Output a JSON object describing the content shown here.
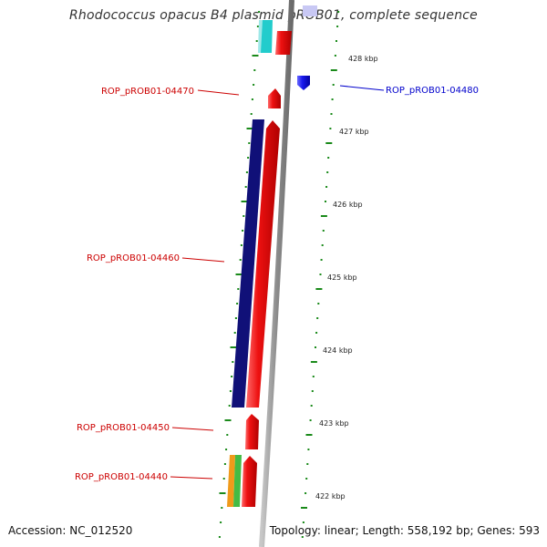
{
  "title": "Rhodococcus opacus B4 plasmid pROB01, complete sequence",
  "footer": {
    "accession": "Accession: NC_012520",
    "topology": "Topology: linear; Length: 558,192 bp; Genes: 593"
  },
  "scale_ticks": [
    {
      "label": "428 kbp",
      "kbp": 428
    },
    {
      "label": "427 kbp",
      "kbp": 427
    },
    {
      "label": "426 kbp",
      "kbp": 426
    },
    {
      "label": "425 kbp",
      "kbp": 425
    },
    {
      "label": "424 kbp",
      "kbp": 424
    },
    {
      "label": "423 kbp",
      "kbp": 423
    },
    {
      "label": "422 kbp",
      "kbp": 422
    }
  ],
  "genes": [
    {
      "label": "ROP_pROB01-04470",
      "strand": "forward",
      "color": "#dd0000"
    },
    {
      "label": "ROP_pROB01-04480",
      "strand": "reverse",
      "color": "#0000cc"
    },
    {
      "label": "ROP_pROB01-04460",
      "strand": "forward",
      "color": "#dd0000"
    },
    {
      "label": "ROP_pROB01-04450",
      "strand": "forward",
      "color": "#dd0000"
    },
    {
      "label": "ROP_pROB01-04440",
      "strand": "forward",
      "color": "#dd0000"
    }
  ],
  "colors": {
    "backbone": "#8c8c8c",
    "tick": "#1a8a1a",
    "forward_gene": "#ee1111",
    "reverse_gene": "#1a1aee",
    "navy_band": "#101078",
    "cyan_band": "#22cccc",
    "orange_band": "#f09a1a",
    "green_band": "#44bb44",
    "label_forward": "#cc0000",
    "label_reverse": "#0000cc"
  }
}
